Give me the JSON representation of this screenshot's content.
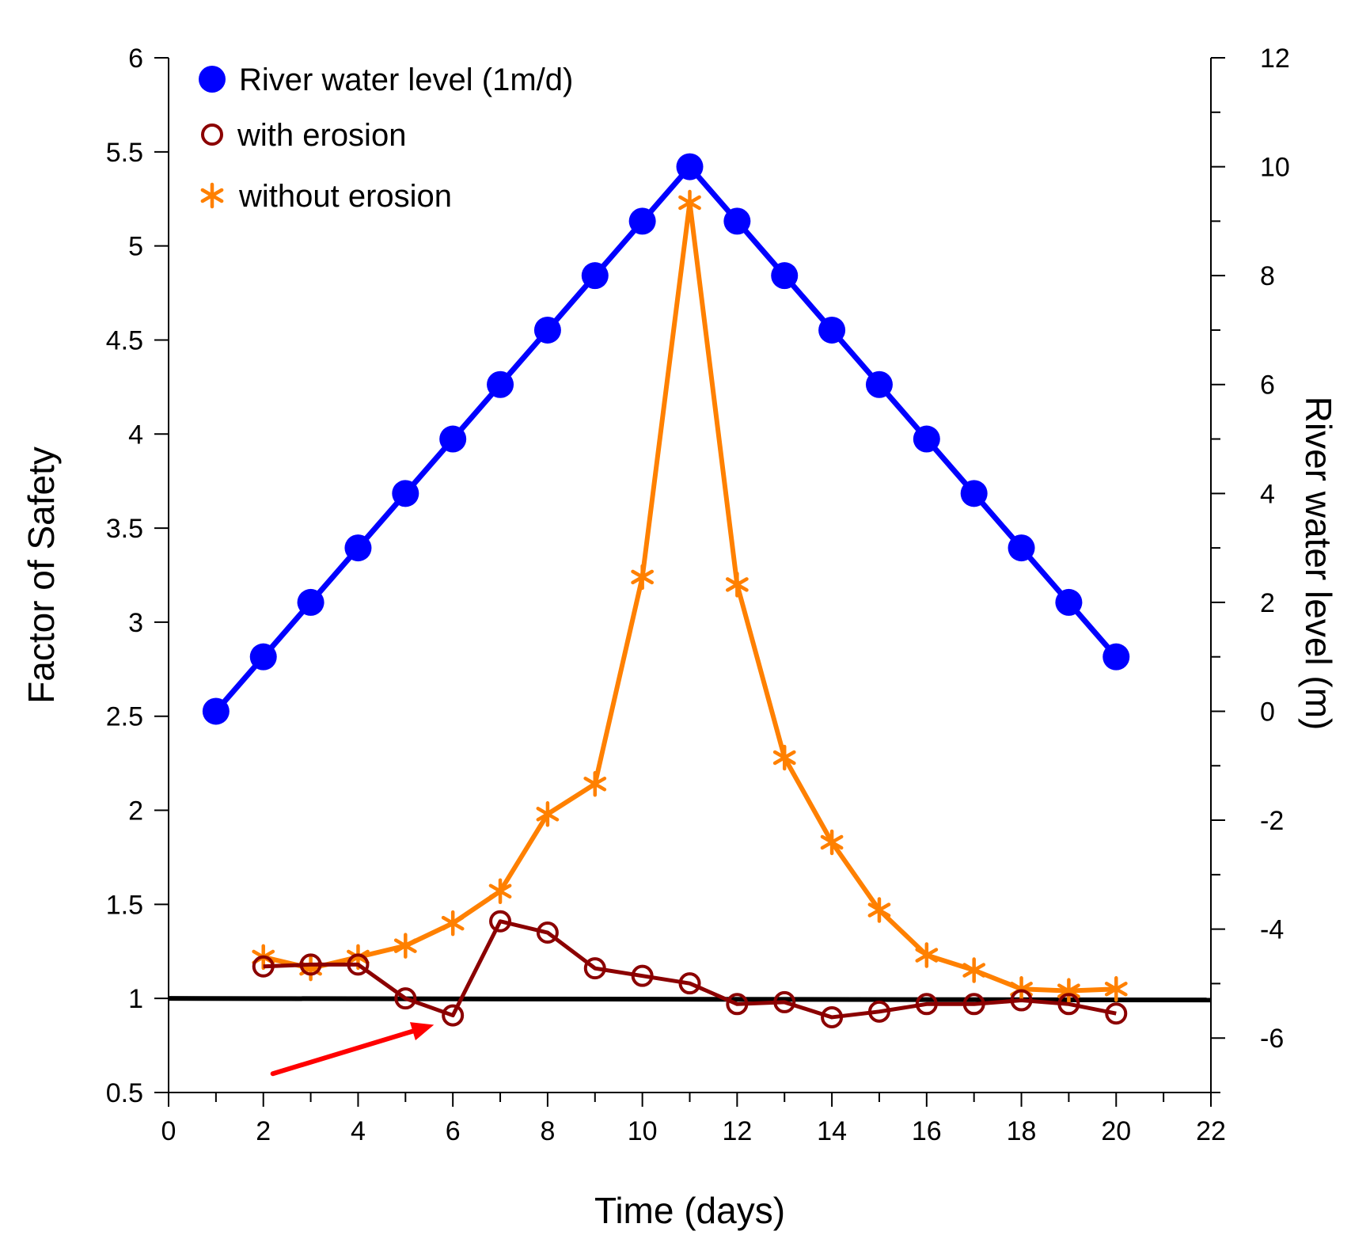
{
  "chart_data": {
    "type": "line",
    "xlabel": "Time (days)",
    "ylabel": "Factor of Safety",
    "y2label": "River water level (m)",
    "xlim": [
      0,
      22
    ],
    "ylim": [
      0.5,
      6
    ],
    "y2lim": [
      -7,
      12
    ],
    "x_ticks": [
      0,
      2,
      4,
      6,
      8,
      10,
      12,
      14,
      16,
      18,
      20,
      22
    ],
    "y_ticks": [
      0.5,
      1,
      1.5,
      2,
      2.5,
      3,
      3.5,
      4,
      4.5,
      5,
      5.5,
      6
    ],
    "y2_ticks": [
      -6,
      -4,
      -2,
      0,
      2,
      4,
      6,
      8,
      10,
      12
    ],
    "grid": false,
    "legend_position": "top-left",
    "series": [
      {
        "name": "River water level (1m/d)",
        "axis": "right",
        "color": "#0000ff",
        "marker": "filled-circle",
        "x": [
          1,
          2,
          3,
          4,
          5,
          6,
          7,
          8,
          9,
          10,
          11,
          12,
          13,
          14,
          15,
          16,
          17,
          18,
          19,
          20
        ],
        "y": [
          0,
          1,
          2,
          3,
          4,
          5,
          6,
          7,
          8,
          9,
          10,
          9,
          8,
          7,
          6,
          5,
          4,
          3,
          2,
          1
        ]
      },
      {
        "name": "with erosion",
        "axis": "left",
        "color": "#8b0000",
        "marker": "open-circle",
        "x": [
          2,
          3,
          4,
          5,
          6,
          7,
          8,
          9,
          10,
          11,
          12,
          13,
          14,
          15,
          16,
          17,
          18,
          19,
          20
        ],
        "y": [
          1.17,
          1.18,
          1.18,
          1.0,
          0.91,
          1.41,
          1.35,
          1.16,
          1.12,
          1.08,
          0.97,
          0.98,
          0.9,
          0.93,
          0.97,
          0.97,
          0.99,
          0.97,
          0.92
        ]
      },
      {
        "name": "without erosion",
        "axis": "left",
        "color": "#ff8000",
        "marker": "asterisk",
        "x": [
          2,
          3,
          4,
          5,
          6,
          7,
          8,
          9,
          10,
          11,
          12,
          13,
          14,
          15,
          16,
          17,
          18,
          19,
          20
        ],
        "y": [
          1.22,
          1.16,
          1.22,
          1.28,
          1.4,
          1.57,
          1.98,
          2.14,
          3.24,
          5.23,
          3.2,
          2.28,
          1.83,
          1.47,
          1.23,
          1.15,
          1.05,
          1.04,
          1.05
        ]
      }
    ],
    "reference_line": {
      "y": 1,
      "axis": "left",
      "color": "#000000"
    },
    "annotation_arrow": {
      "from": [
        2.2,
        0.6
      ],
      "to": [
        5.6,
        0.86
      ],
      "axis": "left",
      "color": "#ff0000"
    }
  }
}
